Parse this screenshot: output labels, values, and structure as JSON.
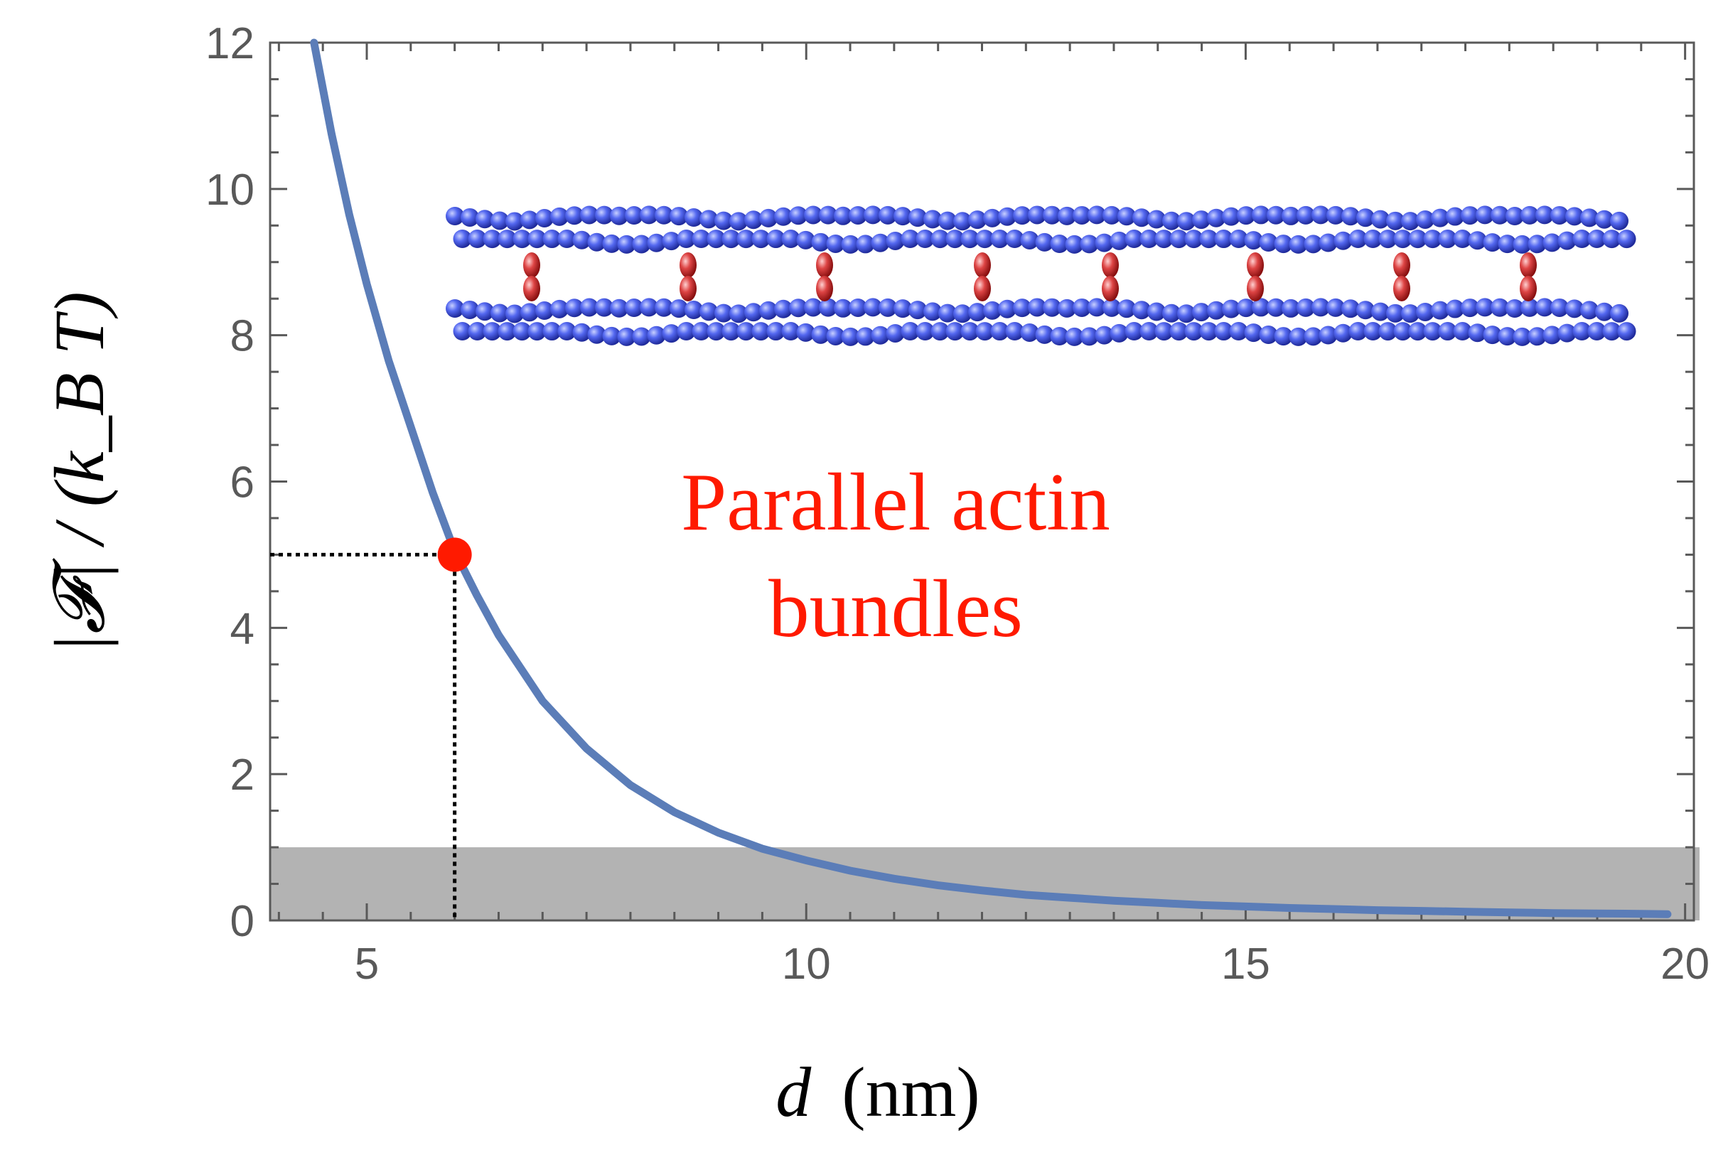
{
  "chart_data": {
    "type": "line",
    "xlabel": {
      "var": "d",
      "unit": "(nm)"
    },
    "ylabel": "|𝓕| / (k_B T)",
    "xlim": [
      3.9,
      20.1
    ],
    "ylim": [
      0,
      12
    ],
    "xticks": [
      5,
      10,
      15,
      20
    ],
    "yticks": [
      0,
      2,
      4,
      6,
      8,
      10,
      12
    ],
    "xtick_labels": [
      "5",
      "10",
      "15",
      "20"
    ],
    "ytick_labels": [
      "0",
      "2",
      "4",
      "6",
      "8",
      "10",
      "12"
    ],
    "grid": false,
    "series": [
      {
        "color": "#5b7db8",
        "x": [
          4.4,
          4.6,
          4.8,
          5.0,
          5.25,
          5.5,
          5.75,
          6.0,
          6.25,
          6.5,
          7.0,
          7.5,
          8.0,
          8.5,
          9.0,
          9.5,
          10.0,
          10.5,
          11.0,
          11.5,
          12.0,
          12.5,
          13.0,
          13.5,
          14.0,
          14.5,
          15.0,
          15.5,
          16.0,
          16.5,
          17.0,
          17.5,
          18.0,
          18.5,
          19.0,
          19.5,
          19.8
        ],
        "y": [
          12.0,
          10.75,
          9.65,
          8.7,
          7.65,
          6.75,
          5.85,
          5.05,
          4.45,
          3.9,
          3.0,
          2.35,
          1.85,
          1.48,
          1.2,
          0.98,
          0.82,
          0.68,
          0.57,
          0.48,
          0.41,
          0.35,
          0.31,
          0.27,
          0.24,
          0.21,
          0.19,
          0.17,
          0.155,
          0.14,
          0.13,
          0.12,
          0.11,
          0.1,
          0.095,
          0.09,
          0.085
        ]
      }
    ],
    "highlight_point": {
      "x": 6.0,
      "y": 5.0,
      "color": "#ff1a00"
    },
    "shaded_band": {
      "y0": 0,
      "y1": 1,
      "color": "#b3b3b3"
    },
    "annotation": {
      "line1": "Parallel actin",
      "line2": "bundles",
      "color": "#ff1a00"
    }
  },
  "colors": {
    "axis": "#595959",
    "bead_blue": "#4a5fe0",
    "bead_red": "#d03a3a"
  },
  "icons": [
    "actin-filament-bundle-illustration"
  ]
}
